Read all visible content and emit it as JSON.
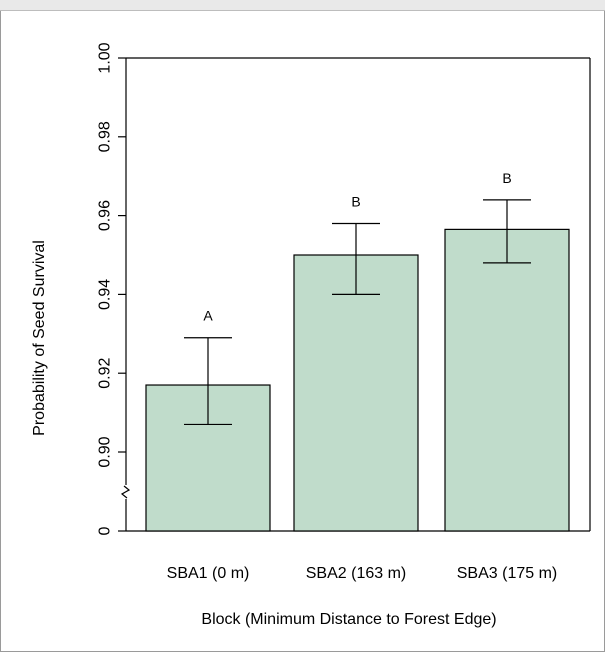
{
  "chart_data": {
    "type": "bar",
    "title": "",
    "xlabel": "Block (Minimum Distance to Forest Edge)",
    "ylabel": "Probability of Seed Survival",
    "categories": [
      "SBA1 (0 m)",
      "SBA2 (163 m)",
      "SBA3 (175 m)"
    ],
    "values": [
      0.917,
      0.95,
      0.9565
    ],
    "error_low": [
      0.907,
      0.94,
      0.948
    ],
    "error_high": [
      0.929,
      0.958,
      0.964
    ],
    "significance_letters": [
      "A",
      "B",
      "B"
    ],
    "y_ticks": [
      "0",
      "0.90",
      "0.92",
      "0.94",
      "0.96",
      "0.98",
      "1.00"
    ],
    "ylim": [
      0.88,
      1.0
    ],
    "axis_break": true,
    "bar_color": "#c0dccb",
    "grid": false
  }
}
